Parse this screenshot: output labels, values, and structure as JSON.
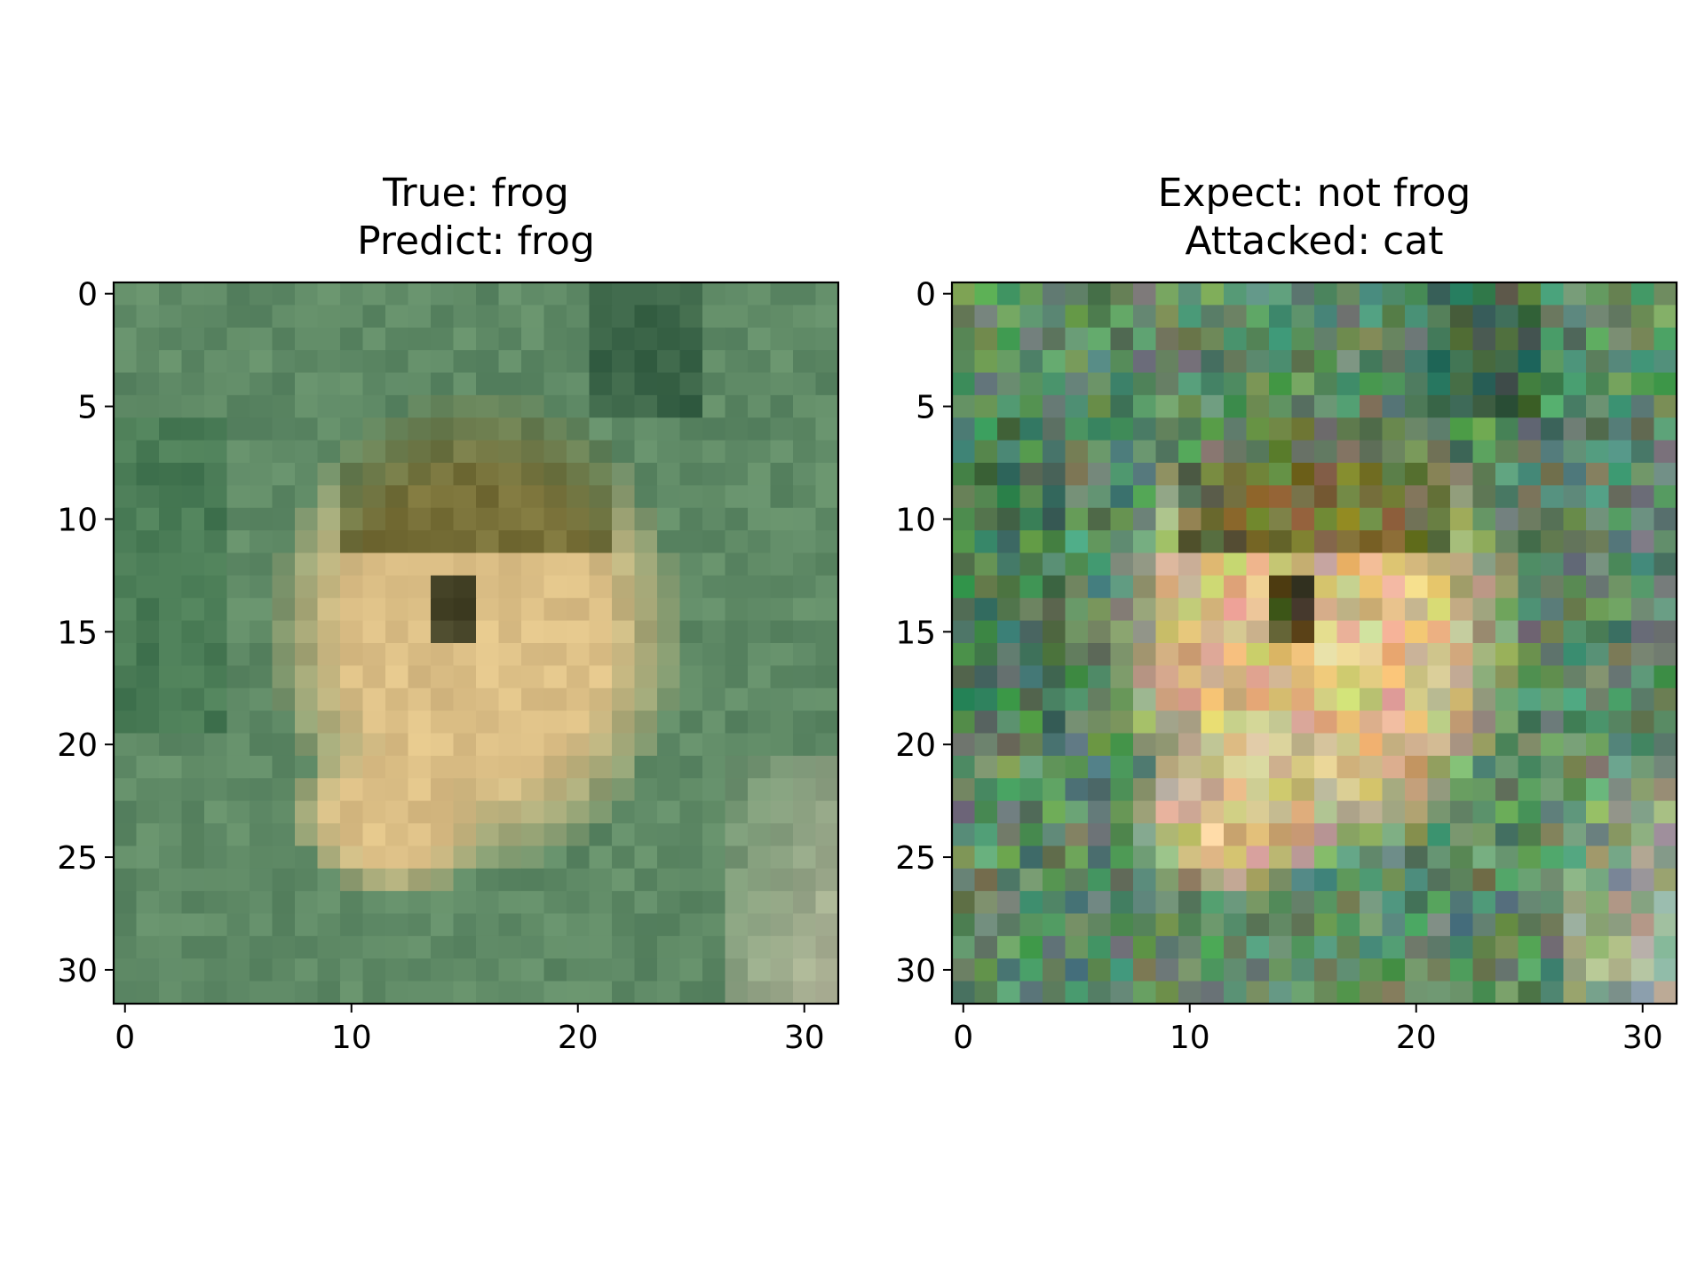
{
  "chart_data": [
    {
      "type": "heatmap",
      "title_lines": [
        "True: frog",
        "Predict: frog"
      ],
      "x_ticks": [
        0,
        10,
        20,
        30
      ],
      "y_ticks": [
        0,
        5,
        10,
        15,
        20,
        25,
        30
      ],
      "xlim": [
        -0.5,
        31.5
      ],
      "ylim": [
        31.5,
        -0.5
      ],
      "image_size": [
        32,
        32
      ],
      "image_content": "CIFAR-10 32x32 RGB image of a frog on a green background",
      "colors": {
        "background": "#5f8a66",
        "subject": "#dcbf86",
        "dark": "#17402a"
      }
    },
    {
      "type": "heatmap",
      "title_lines": [
        "Expect: not frog",
        "Attacked: cat"
      ],
      "x_ticks": [
        0,
        10,
        20,
        30
      ],
      "y_ticks": [
        0,
        5,
        10,
        15,
        20,
        25,
        30
      ],
      "xlim": [
        -0.5,
        31.5
      ],
      "ylim": [
        31.5,
        -0.5
      ],
      "image_size": [
        32,
        32
      ],
      "image_content": "adversarially perturbed version of the same frog image",
      "colors": {
        "background": "#5f8a66",
        "subject": "#dcbf86",
        "dark": "#17402a"
      }
    }
  ]
}
